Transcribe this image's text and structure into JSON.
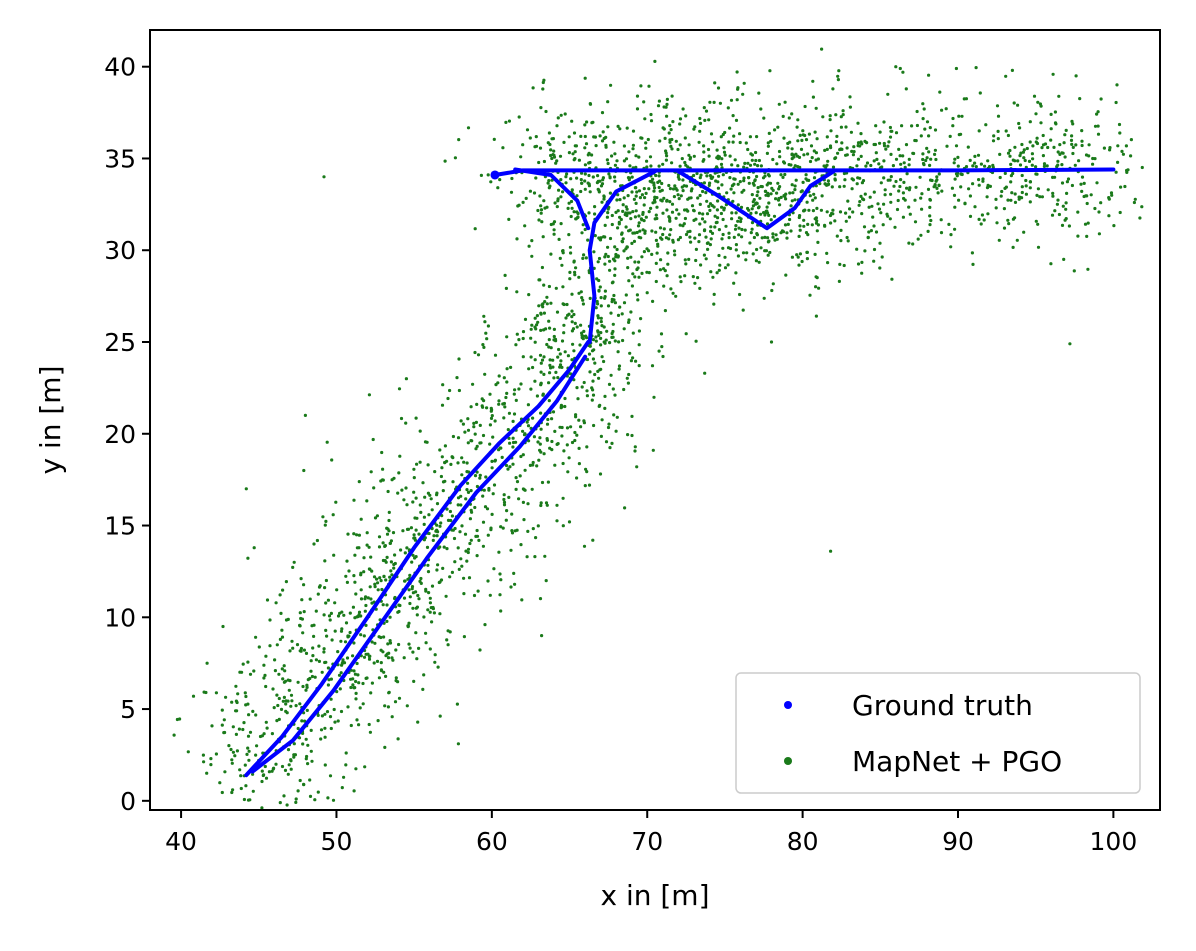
{
  "chart_data": {
    "type": "scatter",
    "title": "",
    "xlabel": "x in [m]",
    "ylabel": "y in [m]",
    "xlim": [
      38,
      103
    ],
    "ylim": [
      -0.5,
      42
    ],
    "xticks": [
      40,
      50,
      60,
      70,
      80,
      90,
      100
    ],
    "yticks": [
      0,
      5,
      10,
      15,
      20,
      25,
      30,
      35,
      40
    ],
    "grid": false,
    "legend_position": "lower-right",
    "colors": {
      "ground_truth": "#0000ff",
      "mapnet_pgo": "#1a7a1a"
    },
    "series": [
      {
        "name": "Ground truth",
        "marker": "line-of-dots",
        "segments": [
          [
            [
              44.2,
              1.4
            ],
            [
              46.5,
              3.5
            ],
            [
              49,
              6.3
            ],
            [
              52,
              10
            ],
            [
              55,
              13.8
            ],
            [
              58,
              17.2
            ],
            [
              60.5,
              19.5
            ],
            [
              63,
              21.5
            ],
            [
              65,
              23.5
            ],
            [
              66.2,
              25
            ]
          ],
          [
            [
              44.6,
              1.6
            ],
            [
              47.2,
              3.3
            ],
            [
              49.8,
              6.0
            ],
            [
              52.8,
              9.6
            ],
            [
              55.8,
              13.2
            ],
            [
              59,
              16.8
            ],
            [
              61.8,
              19.3
            ],
            [
              64.2,
              21.8
            ],
            [
              66.0,
              24.2
            ]
          ],
          [
            [
              66.3,
              25
            ],
            [
              66.6,
              27.5
            ],
            [
              66.3,
              30
            ],
            [
              66.6,
              31.5
            ],
            [
              68,
              33.2
            ],
            [
              70.5,
              34.3
            ]
          ],
          [
            [
              66.2,
              31.2
            ],
            [
              65.5,
              32.7
            ],
            [
              63.8,
              34.1
            ],
            [
              61.5,
              34.4
            ]
          ],
          [
            [
              60.2,
              34.1
            ],
            [
              62,
              34.35
            ],
            [
              70,
              34.35
            ],
            [
              80,
              34.35
            ],
            [
              90,
              34.35
            ],
            [
              100,
              34.4
            ]
          ],
          [
            [
              72,
              34.3
            ],
            [
              74.5,
              33.0
            ],
            [
              77.7,
              31.2
            ],
            [
              79.5,
              32.3
            ],
            [
              80.5,
              33.5
            ],
            [
              82,
              34.3
            ]
          ]
        ]
      },
      {
        "name": "MapNet + PGO",
        "marker": "dot",
        "clusters": [
          {
            "x0": 44.2,
            "y0": 1.4,
            "x1": 66.2,
            "y1": 25,
            "n": 1300,
            "spread": 2.6
          },
          {
            "x0": 66.3,
            "y0": 25,
            "x1": 66.6,
            "y1": 31.5,
            "n": 170,
            "spread": 2.2
          },
          {
            "x0": 66.6,
            "y0": 31.5,
            "x1": 82,
            "y1": 32.3,
            "n": 520,
            "spread": 2.3
          },
          {
            "x0": 62,
            "y0": 34.3,
            "x1": 100,
            "y1": 34.4,
            "n": 1150,
            "spread": 2.0
          }
        ],
        "outliers": [
          [
            44.2,
            17
          ],
          [
            48,
            21
          ],
          [
            49.2,
            34
          ],
          [
            81.8,
            13.6
          ],
          [
            63.2,
            9
          ],
          [
            73.7,
            23.3
          ],
          [
            78,
            25
          ],
          [
            97.2,
            24.9
          ],
          [
            42.7,
            9.5
          ],
          [
            40.8,
            5.7
          ],
          [
            41.6,
            5.9
          ],
          [
            59.9,
            11.2
          ],
          [
            63.5,
            12.0
          ],
          [
            66.5,
            14.2
          ],
          [
            86,
            40
          ],
          [
            89.9,
            39.9
          ],
          [
            82.3,
            39.3
          ],
          [
            93.5,
            39.8
          ],
          [
            97.6,
            39.5
          ],
          [
            47.9,
            18
          ],
          [
            54.5,
            23
          ],
          [
            71.6,
            38.4
          ],
          [
            96.8,
            29.5
          ],
          [
            77.5,
            37.2
          ]
        ]
      }
    ],
    "legend": [
      {
        "label": "Ground truth",
        "color": "#0000ff"
      },
      {
        "label": "MapNet + PGO",
        "color": "#1a7a1a"
      }
    ]
  }
}
